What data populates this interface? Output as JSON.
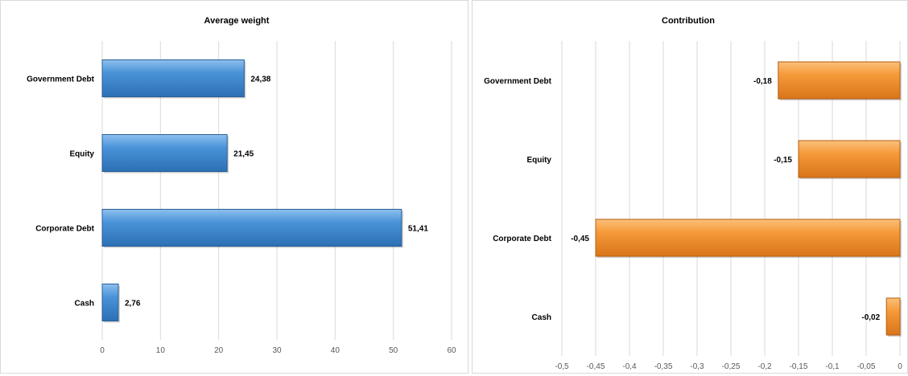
{
  "chart_data": [
    {
      "type": "bar",
      "orientation": "horizontal",
      "title": "Average weight",
      "categories": [
        "Government Debt",
        "Equity",
        "Corporate Debt",
        "Cash"
      ],
      "values": [
        24.38,
        21.45,
        51.41,
        2.76
      ],
      "data_labels": [
        "24,38",
        "21,45",
        "51,41",
        "2,76"
      ],
      "xlim": [
        0,
        60
      ],
      "ticks": [
        0,
        10,
        20,
        30,
        40,
        50,
        60
      ],
      "tick_labels": [
        "0",
        "10",
        "20",
        "30",
        "40",
        "50",
        "60"
      ],
      "grid": true,
      "color": "#3d85c6",
      "xlabel": "",
      "ylabel": ""
    },
    {
      "type": "bar",
      "orientation": "horizontal",
      "title": "Contribution",
      "categories": [
        "Government Debt",
        "Equity",
        "Corporate Debt",
        "Cash"
      ],
      "values": [
        -0.18,
        -0.15,
        -0.45,
        -0.02
      ],
      "data_labels": [
        "-0,18",
        "-0,15",
        "-0,45",
        "-0,02"
      ],
      "xlim": [
        -0.5,
        0
      ],
      "ticks": [
        -0.5,
        -0.45,
        -0.4,
        -0.35,
        -0.3,
        -0.25,
        -0.2,
        -0.15,
        -0.1,
        -0.05,
        0
      ],
      "tick_labels": [
        "-0,5",
        "-0,45",
        "-0,4",
        "-0,35",
        "-0,3",
        "-0,25",
        "-0,2",
        "-0,15",
        "-0,1",
        "-0,05",
        "0"
      ],
      "grid": true,
      "color": "#f08a24",
      "xlabel": "",
      "ylabel": ""
    }
  ]
}
